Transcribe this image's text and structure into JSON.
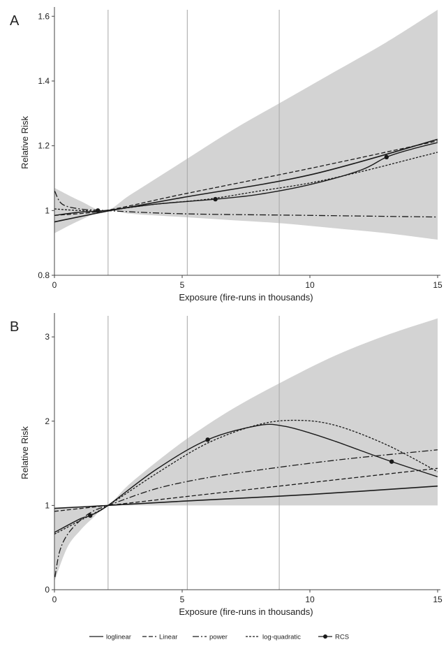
{
  "colors": {
    "ci_band": "#d3d3d3",
    "curves": "#1a1a1a",
    "knot_lines": "#a6a6a6",
    "axis": "#444444"
  },
  "legend": {
    "placement": "bottom-center",
    "items": [
      {
        "key": "loglinear",
        "label": "loglinear",
        "dash": "solid"
      },
      {
        "key": "linear",
        "label": "Linear",
        "dash": "dashed"
      },
      {
        "key": "power",
        "label": "power",
        "dash": "dash-dot"
      },
      {
        "key": "logquad",
        "label": "log-quadratic",
        "dash": "dotted"
      },
      {
        "key": "rcs",
        "label": "RCS",
        "dash": "solid-with-dots"
      }
    ]
  },
  "chart_data": [
    {
      "panel": "A",
      "type": "line",
      "xlabel": "Exposure (fire-runs in thousands)",
      "ylabel": "Relative Risk",
      "xlim": [
        0,
        15
      ],
      "ylim": [
        0.8,
        1.62
      ],
      "xticks": [
        0,
        5,
        10,
        15
      ],
      "yticks": [
        0.8,
        1,
        1.2,
        1.4,
        1.6
      ],
      "ytick_labels": [
        "0.8",
        "1",
        "1.2",
        "1.4",
        "1.6"
      ],
      "knots": [
        2.1,
        5.2,
        8.8
      ],
      "band": {
        "x": [
          0,
          1,
          2,
          3,
          5,
          7,
          9,
          11,
          13,
          15
        ],
        "upper": [
          1.07,
          1.03,
          1.0,
          1.05,
          1.15,
          1.25,
          1.34,
          1.43,
          1.52,
          1.62
        ],
        "lower": [
          0.93,
          0.97,
          1.0,
          0.99,
          0.98,
          0.97,
          0.96,
          0.945,
          0.93,
          0.91
        ]
      },
      "series": [
        {
          "key": "loglinear",
          "x": [
            0,
            2,
            5,
            10,
            15
          ],
          "y": [
            0.965,
            0.997,
            1.04,
            1.11,
            1.22
          ]
        },
        {
          "key": "linear",
          "x": [
            0,
            2,
            5,
            10,
            15
          ],
          "y": [
            0.985,
            1.0,
            1.05,
            1.13,
            1.215
          ]
        },
        {
          "key": "power",
          "x": [
            0.01,
            0.3,
            1,
            2,
            5,
            10,
            15
          ],
          "y": [
            1.06,
            1.02,
            1.005,
            1.0,
            0.99,
            0.985,
            0.98
          ]
        },
        {
          "key": "logquad",
          "x": [
            0,
            1,
            2,
            4,
            6,
            8,
            10,
            12,
            14,
            15
          ],
          "y": [
            1.005,
            1.0,
            1.0,
            1.02,
            1.035,
            1.06,
            1.085,
            1.12,
            1.16,
            1.18
          ]
        },
        {
          "key": "rcs",
          "x": [
            0,
            1,
            2,
            4,
            6.3,
            8,
            10,
            12,
            13,
            14,
            15
          ],
          "y": [
            0.985,
            0.995,
            1.0,
            1.02,
            1.035,
            1.05,
            1.08,
            1.125,
            1.165,
            1.19,
            1.21
          ],
          "markers": {
            "x": [
              1.7,
              6.3,
              13.0
            ],
            "y": [
              1.0,
              1.035,
              1.165
            ]
          }
        }
      ]
    },
    {
      "panel": "B",
      "type": "line",
      "xlabel": "Exposure (fire-runs in thousands)",
      "ylabel": "Relative Risk",
      "xlim": [
        0,
        15
      ],
      "ylim": [
        0,
        3.25
      ],
      "xticks": [
        0,
        5,
        10,
        15
      ],
      "yticks": [
        0,
        1,
        2,
        3
      ],
      "ytick_labels": [
        "0",
        "1",
        "2",
        "3"
      ],
      "knots": [
        2.1,
        5.2,
        8.8
      ],
      "band": {
        "x": [
          0,
          0.5,
          1,
          1.5,
          2.1,
          3,
          5,
          7,
          9,
          11,
          13,
          15
        ],
        "upper": [
          0.97,
          0.98,
          0.985,
          0.99,
          1.0,
          1.27,
          1.75,
          2.15,
          2.48,
          2.78,
          3.02,
          3.22
        ],
        "lower": [
          0.1,
          0.5,
          0.7,
          0.85,
          1.0,
          1.0,
          1.0,
          1.0,
          1.0,
          1.0,
          1.0,
          1.0
        ]
      },
      "series": [
        {
          "key": "loglinear",
          "x": [
            0,
            2.1,
            5,
            10,
            15
          ],
          "y": [
            0.965,
            1.0,
            1.05,
            1.13,
            1.23
          ]
        },
        {
          "key": "linear",
          "x": [
            0,
            2.1,
            5,
            10,
            15
          ],
          "y": [
            0.93,
            1.0,
            1.1,
            1.27,
            1.44
          ]
        },
        {
          "key": "power",
          "x": [
            0.02,
            0.2,
            0.5,
            1,
            1.5,
            2.1,
            4,
            6,
            8,
            10,
            12,
            15
          ],
          "y": [
            0.15,
            0.45,
            0.65,
            0.82,
            0.93,
            1.0,
            1.2,
            1.33,
            1.42,
            1.5,
            1.57,
            1.66
          ]
        },
        {
          "key": "logquad",
          "x": [
            0,
            1,
            2.1,
            4,
            6,
            8,
            9.5,
            11,
            13,
            15
          ],
          "y": [
            0.66,
            0.82,
            1.0,
            1.38,
            1.74,
            1.96,
            2.01,
            1.95,
            1.72,
            1.4
          ]
        },
        {
          "key": "rcs",
          "x": [
            0,
            1,
            1.4,
            2.1,
            4,
            6,
            8,
            9,
            10,
            11,
            12,
            13.2,
            15
          ],
          "y": [
            0.68,
            0.84,
            0.88,
            1.0,
            1.43,
            1.78,
            1.95,
            1.94,
            1.86,
            1.76,
            1.65,
            1.52,
            1.34
          ],
          "markers": {
            "x": [
              1.4,
              6.0,
              13.2
            ],
            "y": [
              0.88,
              1.78,
              1.52
            ]
          }
        }
      ]
    }
  ]
}
